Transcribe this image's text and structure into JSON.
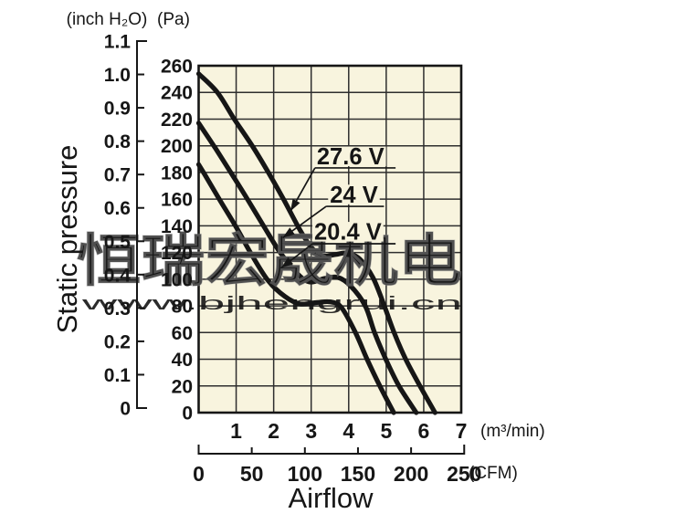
{
  "chart_data": {
    "type": "line",
    "title": "",
    "x_axis_title": "Airflow",
    "y_axis_title": "Static pressure",
    "x_unit_primary": "(m³/min)",
    "x_unit_secondary": "(CFM)",
    "y_unit_left": "(inch H₂O)",
    "y_unit_right": "(Pa)",
    "grid": true,
    "x_range_m3min": [
      0,
      7
    ],
    "x_ticks_m3min": [
      1,
      2,
      3,
      4,
      5,
      6,
      7
    ],
    "x_ticks_cfm": [
      0,
      50,
      100,
      150,
      200,
      250
    ],
    "y_range_pa": [
      0,
      260
    ],
    "y_ticks_pa": [
      260,
      240,
      220,
      200,
      180,
      160,
      140,
      120,
      100,
      80,
      60,
      40,
      20,
      0
    ],
    "y_ticks_inch": [
      "1.1",
      "1.0",
      "0.9",
      "0.8",
      "0.7",
      "0.6",
      "0.5",
      "0.4",
      "0.3",
      "0.2",
      "0.1",
      "0"
    ],
    "series": [
      {
        "name": "27.6 V",
        "points_m3min_pa": [
          [
            0,
            254
          ],
          [
            0.5,
            240
          ],
          [
            0.95,
            220
          ],
          [
            1.45,
            199
          ],
          [
            1.9,
            178
          ],
          [
            2.3,
            158
          ],
          [
            2.7,
            137
          ],
          [
            3.0,
            124
          ],
          [
            3.3,
            117.5
          ],
          [
            3.65,
            118.5
          ],
          [
            3.95,
            119.5
          ],
          [
            4.3,
            115
          ],
          [
            4.65,
            101
          ],
          [
            4.95,
            80
          ],
          [
            5.21,
            60
          ],
          [
            5.52,
            40
          ],
          [
            5.9,
            20
          ],
          [
            6.3,
            0
          ]
        ]
      },
      {
        "name": "24 V",
        "points_m3min_pa": [
          [
            0,
            217
          ],
          [
            0.45,
            198
          ],
          [
            0.9,
            178
          ],
          [
            1.3,
            160
          ],
          [
            1.75,
            139
          ],
          [
            2.15,
            121
          ],
          [
            2.6,
            105
          ],
          [
            2.95,
            98
          ],
          [
            3.35,
            100.5
          ],
          [
            3.7,
            101.5
          ],
          [
            4.05,
            95
          ],
          [
            4.44,
            80
          ],
          [
            4.69,
            60
          ],
          [
            4.99,
            40
          ],
          [
            5.34,
            20
          ],
          [
            5.8,
            0
          ]
        ]
      },
      {
        "name": "20.4 V",
        "points_m3min_pa": [
          [
            0,
            186
          ],
          [
            0.15,
            179
          ],
          [
            0.55,
            160
          ],
          [
            1.0,
            139
          ],
          [
            1.4,
            119
          ],
          [
            1.85,
            99
          ],
          [
            2.3,
            87
          ],
          [
            2.7,
            81.5
          ],
          [
            3.15,
            82.5
          ],
          [
            3.5,
            83
          ],
          [
            3.8,
            79
          ],
          [
            4.18,
            60
          ],
          [
            4.49,
            40
          ],
          [
            4.83,
            20
          ],
          [
            5.2,
            0
          ]
        ]
      }
    ],
    "annotations": [
      {
        "text": "27.6 V",
        "text_pos": [
          3.15,
          186.1
        ],
        "underline_x": [
          3.1,
          5.25
        ],
        "underline_pa": 183.4,
        "arrow_tip": [
          2.45,
          151
        ]
      },
      {
        "text": "24 V",
        "text_pos": [
          3.5,
          157.5
        ],
        "underline_x": [
          3.4,
          4.94
        ],
        "underline_pa": 154.6,
        "arrow_tip": [
          2.24,
          131
        ]
      },
      {
        "text": "20.4 V",
        "text_pos": [
          3.08,
          129.6
        ],
        "underline_x": [
          3.04,
          5.25
        ],
        "underline_pa": 126.6,
        "arrow_tip": [
          2.2,
          108.5
        ]
      }
    ]
  },
  "watermark": {
    "text_cn": "恒瑞宏晟机电",
    "text_url": "www.bjhengrui.cn"
  },
  "colors": {
    "page_bg": "#ffffff",
    "plot_bg": "#f8f4de",
    "grid": "#2e2e2e",
    "ink": "#161616",
    "watermark_text": "#ffffff",
    "watermark_url": "#c4c4c4"
  }
}
